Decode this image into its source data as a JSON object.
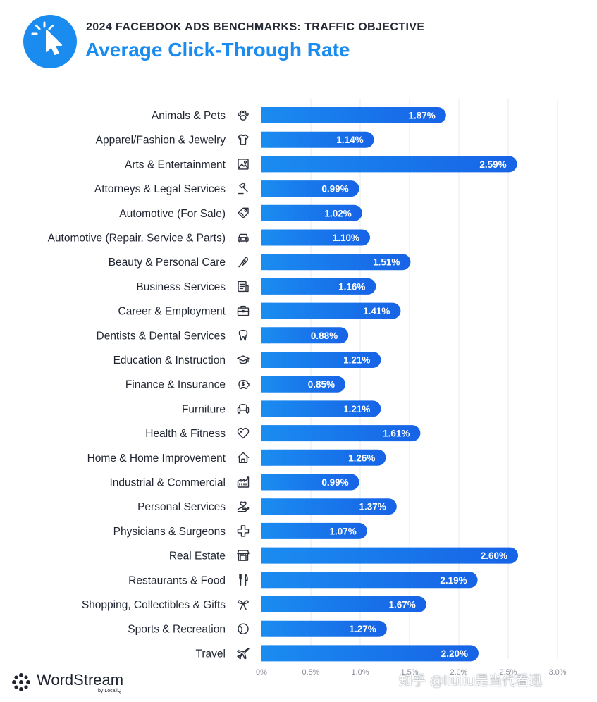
{
  "header": {
    "subtitle": "2024 FACEBOOK ADS BENCHMARKS: TRAFFIC OBJECTIVE",
    "title": "Average Click-Through Rate",
    "icon": "cursor-click-icon"
  },
  "chart_data": {
    "type": "bar",
    "orientation": "horizontal",
    "title": "Average Click-Through Rate",
    "subtitle": "2024 FACEBOOK ADS BENCHMARKS: TRAFFIC OBJECTIVE",
    "xlim": [
      0,
      3.0
    ],
    "xticks": [
      0,
      0.5,
      1.0,
      1.5,
      2.0,
      2.5,
      3.0
    ],
    "xtick_labels": [
      "0%",
      "0.5%",
      "1.0%",
      "1.5%",
      "2.0%",
      "2.5%",
      "3.0%"
    ],
    "grid": true,
    "bar_color_start": "#1a8cf0",
    "bar_color_end": "#1763e6",
    "categories": [
      {
        "name": "Animals & Pets",
        "value": 1.87,
        "label": "1.87%",
        "icon": "paw-icon"
      },
      {
        "name": "Apparel/Fashion & Jewelry",
        "value": 1.14,
        "label": "1.14%",
        "icon": "tshirt-icon"
      },
      {
        "name": "Arts & Entertainment",
        "value": 2.59,
        "label": "2.59%",
        "icon": "picture-icon"
      },
      {
        "name": "Attorneys & Legal Services",
        "value": 0.99,
        "label": "0.99%",
        "icon": "gavel-icon"
      },
      {
        "name": "Automotive (For Sale)",
        "value": 1.02,
        "label": "1.02%",
        "icon": "price-tag-icon"
      },
      {
        "name": "Automotive (Repair, Service & Parts)",
        "value": 1.1,
        "label": "1.10%",
        "icon": "car-icon"
      },
      {
        "name": "Beauty & Personal Care",
        "value": 1.51,
        "label": "1.51%",
        "icon": "comb-icon"
      },
      {
        "name": "Business Services",
        "value": 1.16,
        "label": "1.16%",
        "icon": "document-icon"
      },
      {
        "name": "Career & Employment",
        "value": 1.41,
        "label": "1.41%",
        "icon": "briefcase-icon"
      },
      {
        "name": "Dentists & Dental Services",
        "value": 0.88,
        "label": "0.88%",
        "icon": "tooth-icon"
      },
      {
        "name": "Education & Instruction",
        "value": 1.21,
        "label": "1.21%",
        "icon": "graduation-cap-icon"
      },
      {
        "name": "Finance & Insurance",
        "value": 0.85,
        "label": "0.85%",
        "icon": "piggy-bank-icon"
      },
      {
        "name": "Furniture",
        "value": 1.21,
        "label": "1.21%",
        "icon": "armchair-icon"
      },
      {
        "name": "Health & Fitness",
        "value": 1.61,
        "label": "1.61%",
        "icon": "heart-icon"
      },
      {
        "name": "Home & Home Improvement",
        "value": 1.26,
        "label": "1.26%",
        "icon": "house-icon"
      },
      {
        "name": "Industrial & Commercial",
        "value": 0.99,
        "label": "0.99%",
        "icon": "factory-icon"
      },
      {
        "name": "Personal Services",
        "value": 1.37,
        "label": "1.37%",
        "icon": "hand-heart-icon"
      },
      {
        "name": "Physicians & Surgeons",
        "value": 1.07,
        "label": "1.07%",
        "icon": "medical-cross-icon"
      },
      {
        "name": "Real Estate",
        "value": 2.6,
        "label": "2.60%",
        "icon": "storefront-icon"
      },
      {
        "name": "Restaurants & Food",
        "value": 2.19,
        "label": "2.19%",
        "icon": "fork-knife-icon"
      },
      {
        "name": "Shopping, Collectibles & Gifts",
        "value": 1.67,
        "label": "1.67%",
        "icon": "gift-bow-icon"
      },
      {
        "name": "Sports & Recreation",
        "value": 1.27,
        "label": "1.27%",
        "icon": "ball-icon"
      },
      {
        "name": "Travel",
        "value": 2.2,
        "label": "2.20%",
        "icon": "airplane-icon"
      }
    ]
  },
  "footer": {
    "brand": "WordStream",
    "brand_tagline": "by LocaliQ",
    "brand_icon": "wordstream-logo-icon",
    "watermark": "知乎 @liuliu是当代看迅"
  }
}
